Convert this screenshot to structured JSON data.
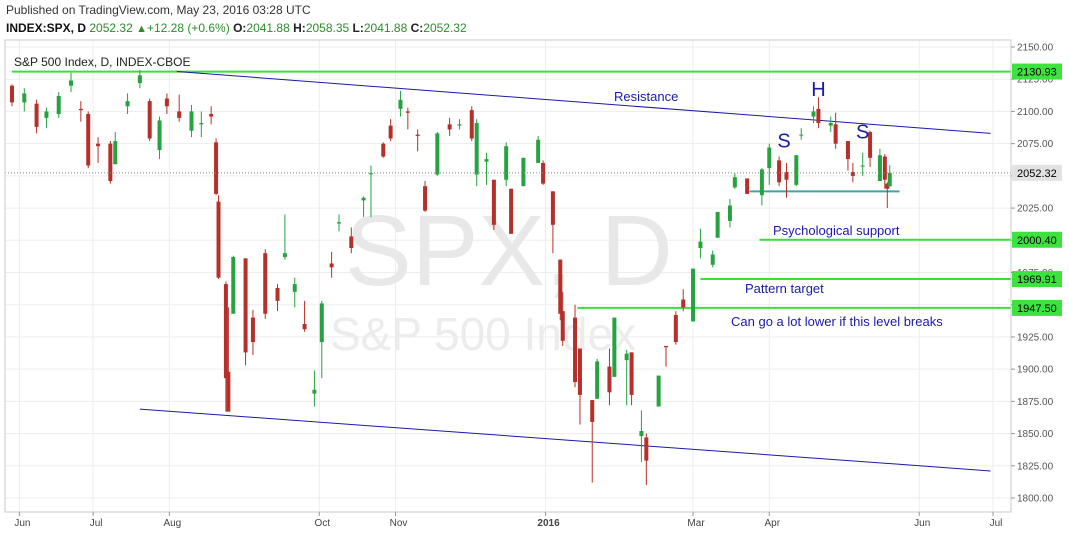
{
  "header": {
    "published": "Published on TradingView.com, May 23, 2016 03:28 UTC",
    "symbol": "INDEX:SPX, D",
    "last": "2052.32",
    "change": "+12.28 (+0.6%)",
    "open_label": "O:",
    "open": "2041.88",
    "high_label": "H:",
    "high": "2058.35",
    "low_label": "L:",
    "low": "2041.88",
    "close_label": "C:",
    "close": "2052.32"
  },
  "colors": {
    "up": "#26a240",
    "down": "#b5302a",
    "green_line": "#3adf3a",
    "blue_line": "#1a1aa8",
    "neckline": "#3aa8a0",
    "tag_green": "#3ee23e"
  },
  "chart_data": {
    "type": "candlestick",
    "title": "S&P 500 Index, D, INDEX-CBOE",
    "watermark": "SPX, D",
    "watermark_sub": "S&P 500 Index",
    "ylim": [
      1790,
      2155
    ],
    "y_ticks": [
      "1800.00",
      "1825.00",
      "1850.00",
      "1875.00",
      "1900.00",
      "1925.00",
      "1950.00",
      "1975.00",
      "2000.00",
      "2025.00",
      "2050.00",
      "2075.00",
      "2100.00",
      "2125.00",
      "2150.00"
    ],
    "x_ticks": [
      {
        "label": "Jun",
        "date": "2015-06-01",
        "bold": false
      },
      {
        "label": "Jul",
        "date": "2015-07-01",
        "bold": false
      },
      {
        "label": "Aug",
        "date": "2015-08-01",
        "bold": false
      },
      {
        "label": "Oct",
        "date": "2015-10-01",
        "bold": false
      },
      {
        "label": "Nov",
        "date": "2015-11-01",
        "bold": false
      },
      {
        "label": "2016",
        "date": "2016-01-01",
        "bold": true
      },
      {
        "label": "Mar",
        "date": "2016-03-01",
        "bold": false
      },
      {
        "label": "Apr",
        "date": "2016-04-01",
        "bold": false
      },
      {
        "label": "Jun",
        "date": "2016-06-01",
        "bold": false
      },
      {
        "label": "Jul",
        "date": "2016-07-01",
        "bold": false
      }
    ],
    "last_price": "2052.32",
    "levels": [
      {
        "value": 2130.93,
        "label": "2130.93",
        "from": "2015-05-29",
        "text": ""
      },
      {
        "value": 2000.4,
        "label": "2000.40",
        "from": "2016-03-28",
        "text": "Psychological support"
      },
      {
        "value": 1969.91,
        "label": "1969.91",
        "from": "2016-03-04",
        "text": "Pattern target"
      },
      {
        "value": 1947.5,
        "label": "1947.50",
        "from": "2016-01-14",
        "text": "Can go a lot lower if this level breaks"
      }
    ],
    "trendlines": [
      {
        "name": "Resistance",
        "from": {
          "date": "2015-08-04",
          "value": 2131
        },
        "to": {
          "date": "2016-06-30",
          "value": 2083
        }
      },
      {
        "name": "",
        "from": {
          "date": "2015-07-20",
          "value": 1869
        },
        "to": {
          "date": "2016-06-30",
          "value": 1821
        }
      }
    ],
    "neckline": {
      "from": {
        "date": "2016-03-24",
        "value": 2038
      },
      "to": {
        "date": "2016-05-24",
        "value": 2038
      }
    },
    "pattern_labels": [
      {
        "text": "S",
        "date": "2016-04-07",
        "value": 2072
      },
      {
        "text": "H",
        "date": "2016-04-21",
        "value": 2112
      },
      {
        "text": "S",
        "date": "2016-05-09",
        "value": 2079
      }
    ],
    "candles": [
      {
        "date": "2015-05-29",
        "o": 2120,
        "h": 2121,
        "l": 2104,
        "c": 2107
      },
      {
        "date": "2015-06-03",
        "o": 2107,
        "h": 2118,
        "l": 2100,
        "c": 2114
      },
      {
        "date": "2015-06-08",
        "o": 2106,
        "h": 2109,
        "l": 2083,
        "c": 2088
      },
      {
        "date": "2015-06-12",
        "o": 2095,
        "h": 2103,
        "l": 2087,
        "c": 2100
      },
      {
        "date": "2015-06-17",
        "o": 2098,
        "h": 2115,
        "l": 2095,
        "c": 2112
      },
      {
        "date": "2015-06-22",
        "o": 2120,
        "h": 2130,
        "l": 2115,
        "c": 2124
      },
      {
        "date": "2015-06-26",
        "o": 2102,
        "h": 2108,
        "l": 2092,
        "c": 2101
      },
      {
        "date": "2015-06-29",
        "o": 2098,
        "h": 2100,
        "l": 2056,
        "c": 2058
      },
      {
        "date": "2015-07-03",
        "o": 2075,
        "h": 2080,
        "l": 2060,
        "c": 2073
      },
      {
        "date": "2015-07-08",
        "o": 2075,
        "h": 2077,
        "l": 2044,
        "c": 2046
      },
      {
        "date": "2015-07-10",
        "o": 2059,
        "h": 2084,
        "l": 2059,
        "c": 2077
      },
      {
        "date": "2015-07-15",
        "o": 2104,
        "h": 2114,
        "l": 2098,
        "c": 2108
      },
      {
        "date": "2015-07-20",
        "o": 2122,
        "h": 2132,
        "l": 2118,
        "c": 2128
      },
      {
        "date": "2015-07-24",
        "o": 2108,
        "h": 2110,
        "l": 2077,
        "c": 2079
      },
      {
        "date": "2015-07-28",
        "o": 2070,
        "h": 2096,
        "l": 2063,
        "c": 2093
      },
      {
        "date": "2015-07-31",
        "o": 2110,
        "h": 2114,
        "l": 2098,
        "c": 2104
      },
      {
        "date": "2015-08-05",
        "o": 2100,
        "h": 2113,
        "l": 2092,
        "c": 2095
      },
      {
        "date": "2015-08-10",
        "o": 2085,
        "h": 2105,
        "l": 2080,
        "c": 2100
      },
      {
        "date": "2015-08-14",
        "o": 2090,
        "h": 2100,
        "l": 2080,
        "c": 2091
      },
      {
        "date": "2015-08-18",
        "o": 2098,
        "h": 2104,
        "l": 2090,
        "c": 2096
      },
      {
        "date": "2015-08-20",
        "o": 2076,
        "h": 2079,
        "l": 2035,
        "c": 2036
      },
      {
        "date": "2015-08-21",
        "o": 2030,
        "h": 2035,
        "l": 1970,
        "c": 1971
      },
      {
        "date": "2015-08-24",
        "o": 1966,
        "h": 1968,
        "l": 1867,
        "c": 1893
      },
      {
        "date": "2015-08-25",
        "o": 1898,
        "h": 1948,
        "l": 1868,
        "c": 1867
      },
      {
        "date": "2015-08-27",
        "o": 1943,
        "h": 1988,
        "l": 1943,
        "c": 1987
      },
      {
        "date": "2015-09-01",
        "o": 1986,
        "h": 1986,
        "l": 1903,
        "c": 1913
      },
      {
        "date": "2015-09-04",
        "o": 1940,
        "h": 1946,
        "l": 1911,
        "c": 1921
      },
      {
        "date": "2015-09-09",
        "o": 1990,
        "h": 1993,
        "l": 1939,
        "c": 1943
      },
      {
        "date": "2015-09-14",
        "o": 1963,
        "h": 1966,
        "l": 1945,
        "c": 1953
      },
      {
        "date": "2015-09-17",
        "o": 1987,
        "h": 2020,
        "l": 1985,
        "c": 1990
      },
      {
        "date": "2015-09-21",
        "o": 1960,
        "h": 1971,
        "l": 1948,
        "c": 1966
      },
      {
        "date": "2015-09-25",
        "o": 1935,
        "h": 1953,
        "l": 1929,
        "c": 1931
      },
      {
        "date": "2015-09-29",
        "o": 1881,
        "h": 1899,
        "l": 1871,
        "c": 1884
      },
      {
        "date": "2015-10-02",
        "o": 1921,
        "h": 1953,
        "l": 1893,
        "c": 1951
      },
      {
        "date": "2015-10-06",
        "o": 1982,
        "h": 1991,
        "l": 1971,
        "c": 1979
      },
      {
        "date": "2015-10-09",
        "o": 2013,
        "h": 2020,
        "l": 2007,
        "c": 2014
      },
      {
        "date": "2015-10-14",
        "o": 2003,
        "h": 2010,
        "l": 1990,
        "c": 1994
      },
      {
        "date": "2015-10-19",
        "o": 2031,
        "h": 2034,
        "l": 2018,
        "c": 2033
      },
      {
        "date": "2015-10-22",
        "o": 2052,
        "h": 2058,
        "l": 2018,
        "c": 2052
      },
      {
        "date": "2015-10-27",
        "o": 2075,
        "h": 2076,
        "l": 2064,
        "c": 2065
      },
      {
        "date": "2015-10-30",
        "o": 2089,
        "h": 2094,
        "l": 2077,
        "c": 2079
      },
      {
        "date": "2015-11-03",
        "o": 2102,
        "h": 2116,
        "l": 2096,
        "c": 2109
      },
      {
        "date": "2015-11-06",
        "o": 2100,
        "h": 2103,
        "l": 2086,
        "c": 2099
      },
      {
        "date": "2015-11-10",
        "o": 2082,
        "h": 2086,
        "l": 2069,
        "c": 2081
      },
      {
        "date": "2015-11-13",
        "o": 2042,
        "h": 2046,
        "l": 2022,
        "c": 2023
      },
      {
        "date": "2015-11-18",
        "o": 2051,
        "h": 2084,
        "l": 2050,
        "c": 2083
      },
      {
        "date": "2015-11-23",
        "o": 2090,
        "h": 2095,
        "l": 2081,
        "c": 2086
      },
      {
        "date": "2015-11-27",
        "o": 2089,
        "h": 2094,
        "l": 2086,
        "c": 2090
      },
      {
        "date": "2015-12-02",
        "o": 2101,
        "h": 2104,
        "l": 2077,
        "c": 2079
      },
      {
        "date": "2015-12-04",
        "o": 2051,
        "h": 2094,
        "l": 2042,
        "c": 2091
      },
      {
        "date": "2015-12-08",
        "o": 2061,
        "h": 2068,
        "l": 2043,
        "c": 2063
      },
      {
        "date": "2015-12-11",
        "o": 2047,
        "h": 2047,
        "l": 2008,
        "c": 2012
      },
      {
        "date": "2015-12-16",
        "o": 2047,
        "h": 2076,
        "l": 2042,
        "c": 2073
      },
      {
        "date": "2015-12-18",
        "o": 2040,
        "h": 2040,
        "l": 2005,
        "c": 2005
      },
      {
        "date": "2015-12-23",
        "o": 2042,
        "h": 2064,
        "l": 2042,
        "c": 2064
      },
      {
        "date": "2015-12-29",
        "o": 2060,
        "h": 2081,
        "l": 2060,
        "c": 2078
      },
      {
        "date": "2015-12-31",
        "o": 2060,
        "h": 2062,
        "l": 2043,
        "c": 2044
      },
      {
        "date": "2016-01-04",
        "o": 2038,
        "h": 2038,
        "l": 1990,
        "c": 2012
      },
      {
        "date": "2016-01-07",
        "o": 1985,
        "h": 1985,
        "l": 1938,
        "c": 1943
      },
      {
        "date": "2016-01-08",
        "o": 1945,
        "h": 1960,
        "l": 1918,
        "c": 1922
      },
      {
        "date": "2016-01-13",
        "o": 1940,
        "h": 1950,
        "l": 1886,
        "c": 1890
      },
      {
        "date": "2016-01-15",
        "o": 1916,
        "h": 1916,
        "l": 1857,
        "c": 1880
      },
      {
        "date": "2016-01-20",
        "o": 1876,
        "h": 1876,
        "l": 1812,
        "c": 1859
      },
      {
        "date": "2016-01-22",
        "o": 1877,
        "h": 1908,
        "l": 1877,
        "c": 1906
      },
      {
        "date": "2016-01-27",
        "o": 1902,
        "h": 1916,
        "l": 1872,
        "c": 1882
      },
      {
        "date": "2016-01-29",
        "o": 1894,
        "h": 1940,
        "l": 1894,
        "c": 1940
      },
      {
        "date": "2016-02-03",
        "o": 1907,
        "h": 1915,
        "l": 1872,
        "c": 1912
      },
      {
        "date": "2016-02-05",
        "o": 1913,
        "h": 1913,
        "l": 1872,
        "c": 1880
      },
      {
        "date": "2016-02-09",
        "o": 1848,
        "h": 1868,
        "l": 1828,
        "c": 1852
      },
      {
        "date": "2016-02-11",
        "o": 1847,
        "h": 1850,
        "l": 1810,
        "c": 1829
      },
      {
        "date": "2016-02-16",
        "o": 1871,
        "h": 1895,
        "l": 1871,
        "c": 1895
      },
      {
        "date": "2016-02-19",
        "o": 1918,
        "h": 1918,
        "l": 1902,
        "c": 1917
      },
      {
        "date": "2016-02-23",
        "o": 1942,
        "h": 1945,
        "l": 1919,
        "c": 1921
      },
      {
        "date": "2016-02-26",
        "o": 1954,
        "h": 1962,
        "l": 1945,
        "c": 1948
      },
      {
        "date": "2016-03-01",
        "o": 1937,
        "h": 1978,
        "l": 1937,
        "c": 1978
      },
      {
        "date": "2016-03-04",
        "o": 1994,
        "h": 2009,
        "l": 1986,
        "c": 1999
      },
      {
        "date": "2016-03-09",
        "o": 1981,
        "h": 1992,
        "l": 1979,
        "c": 1989
      },
      {
        "date": "2016-03-11",
        "o": 2002,
        "h": 2022,
        "l": 2002,
        "c": 2022
      },
      {
        "date": "2016-03-16",
        "o": 2015,
        "h": 2032,
        "l": 2010,
        "c": 2027
      },
      {
        "date": "2016-03-18",
        "o": 2041,
        "h": 2052,
        "l": 2040,
        "c": 2049
      },
      {
        "date": "2016-03-23",
        "o": 2048,
        "h": 2048,
        "l": 2036,
        "c": 2036
      },
      {
        "date": "2016-03-29",
        "o": 2035,
        "h": 2056,
        "l": 2027,
        "c": 2055
      },
      {
        "date": "2016-04-01",
        "o": 2056,
        "h": 2075,
        "l": 2043,
        "c": 2072
      },
      {
        "date": "2016-04-05",
        "o": 2062,
        "h": 2065,
        "l": 2042,
        "c": 2045
      },
      {
        "date": "2016-04-08",
        "o": 2053,
        "h": 2060,
        "l": 2033,
        "c": 2047
      },
      {
        "date": "2016-04-12",
        "o": 2043,
        "h": 2066,
        "l": 2042,
        "c": 2066
      },
      {
        "date": "2016-04-14",
        "o": 2082,
        "h": 2087,
        "l": 2078,
        "c": 2082
      },
      {
        "date": "2016-04-19",
        "o": 2096,
        "h": 2104,
        "l": 2091,
        "c": 2100
      },
      {
        "date": "2016-04-21",
        "o": 2102,
        "h": 2111,
        "l": 2087,
        "c": 2091
      },
      {
        "date": "2016-04-26",
        "o": 2089,
        "h": 2096,
        "l": 2084,
        "c": 2091
      },
      {
        "date": "2016-04-28",
        "o": 2090,
        "h": 2099,
        "l": 2071,
        "c": 2075
      },
      {
        "date": "2016-05-03",
        "o": 2077,
        "h": 2077,
        "l": 2054,
        "c": 2063
      },
      {
        "date": "2016-05-05",
        "o": 2053,
        "h": 2060,
        "l": 2045,
        "c": 2050
      },
      {
        "date": "2016-05-09",
        "o": 2058,
        "h": 2068,
        "l": 2050,
        "c": 2058
      },
      {
        "date": "2016-05-12",
        "o": 2084,
        "h": 2085,
        "l": 2057,
        "c": 2064
      },
      {
        "date": "2016-05-16",
        "o": 2046,
        "h": 2071,
        "l": 2046,
        "c": 2066
      },
      {
        "date": "2016-05-18",
        "o": 2065,
        "h": 2067,
        "l": 2040,
        "c": 2047
      },
      {
        "date": "2016-05-19",
        "o": 2044,
        "h": 2045,
        "l": 2025,
        "c": 2040
      },
      {
        "date": "2016-05-20",
        "o": 2041.88,
        "h": 2058.35,
        "l": 2041.88,
        "c": 2052.32
      }
    ]
  }
}
